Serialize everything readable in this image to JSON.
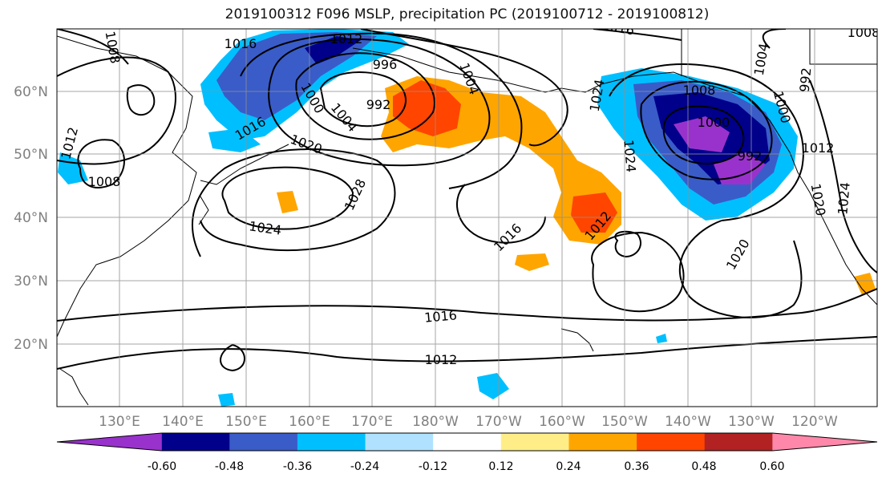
{
  "title": "2019100312 F096 MSLP, precipitation PC (2019100712 - 2019100812)",
  "lat_labels": [
    "60°N",
    "50°N",
    "40°N",
    "30°N",
    "20°N"
  ],
  "lon_labels": [
    "130°E",
    "140°E",
    "150°E",
    "160°E",
    "170°E",
    "180°W",
    "170°W",
    "160°W",
    "150°W",
    "140°W",
    "130°W",
    "120°W"
  ],
  "isobar_labels": [
    "1016",
    "1012",
    "996",
    "992",
    "1004",
    "1008",
    "1000",
    "1020",
    "1016",
    "1012",
    "1008",
    "1028",
    "1024",
    "1016",
    "1012",
    "1024",
    "1020",
    "1000",
    "1004",
    "992",
    "1024",
    "1008",
    "1016",
    "1020",
    "1024",
    "1016",
    "1012",
    "1008",
    "1004",
    "1000",
    "992",
    "1012"
  ],
  "colorbar": {
    "colors": [
      "#9932cc",
      "#00008b",
      "#3a5cc8",
      "#00bfff",
      "#b0e2ff",
      "#ffffff",
      "#ffee88",
      "#ffa500",
      "#ff4500",
      "#b22222",
      "#ff88aa"
    ],
    "tick_labels": [
      "-0.60",
      "-0.48",
      "-0.36",
      "-0.24",
      "-0.12",
      "0.12",
      "0.24",
      "0.36",
      "0.48",
      "0.60"
    ]
  }
}
